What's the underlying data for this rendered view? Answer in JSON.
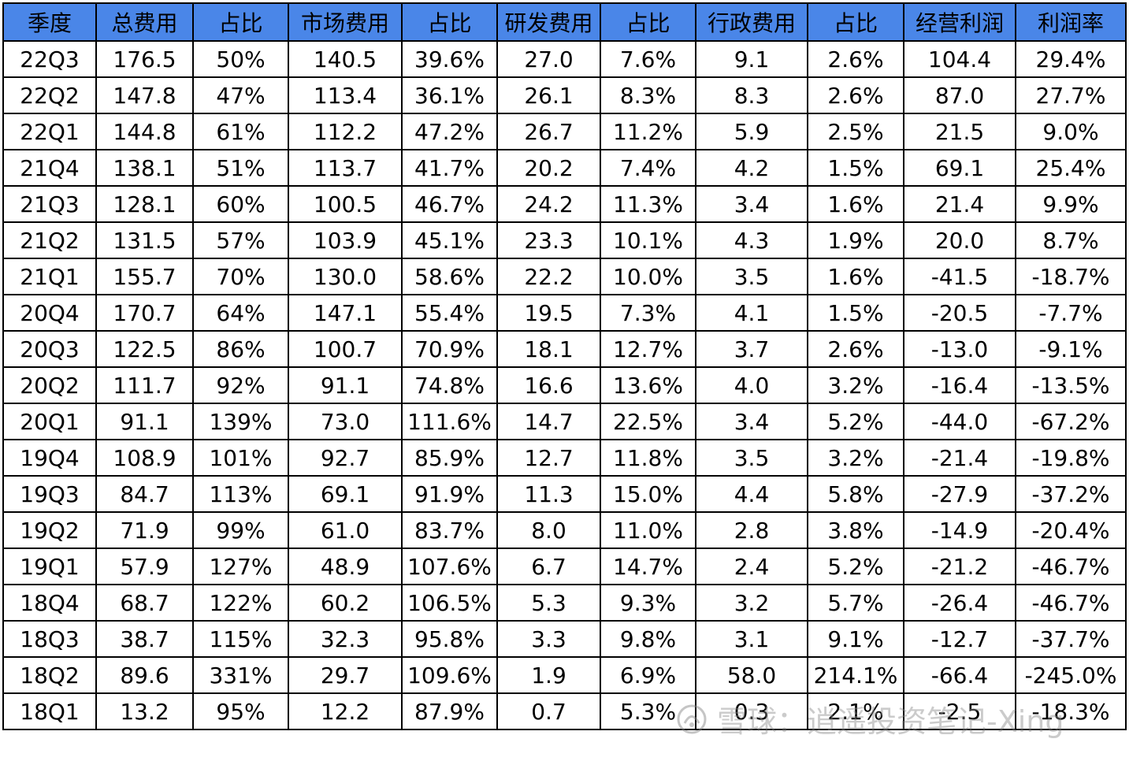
{
  "colors": {
    "header_bg": "#4a86e8",
    "grid": "#000000",
    "text": "#000000"
  },
  "headers": [
    "季度",
    "总费用",
    "占比",
    "市场费用",
    "占比",
    "研发费用",
    "占比",
    "行政费用",
    "占比",
    "经营利润",
    "利润率"
  ],
  "rows": [
    [
      "22Q3",
      "176.5",
      "50%",
      "140.5",
      "39.6%",
      "27.0",
      "7.6%",
      "9.1",
      "2.6%",
      "104.4",
      "29.4%"
    ],
    [
      "22Q2",
      "147.8",
      "47%",
      "113.4",
      "36.1%",
      "26.1",
      "8.3%",
      "8.3",
      "2.6%",
      "87.0",
      "27.7%"
    ],
    [
      "22Q1",
      "144.8",
      "61%",
      "112.2",
      "47.2%",
      "26.7",
      "11.2%",
      "5.9",
      "2.5%",
      "21.5",
      "9.0%"
    ],
    [
      "21Q4",
      "138.1",
      "51%",
      "113.7",
      "41.7%",
      "20.2",
      "7.4%",
      "4.2",
      "1.5%",
      "69.1",
      "25.4%"
    ],
    [
      "21Q3",
      "128.1",
      "60%",
      "100.5",
      "46.7%",
      "24.2",
      "11.3%",
      "3.4",
      "1.6%",
      "21.4",
      "9.9%"
    ],
    [
      "21Q2",
      "131.5",
      "57%",
      "103.9",
      "45.1%",
      "23.3",
      "10.1%",
      "4.3",
      "1.9%",
      "20.0",
      "8.7%"
    ],
    [
      "21Q1",
      "155.7",
      "70%",
      "130.0",
      "58.6%",
      "22.2",
      "10.0%",
      "3.5",
      "1.6%",
      "-41.5",
      "-18.7%"
    ],
    [
      "20Q4",
      "170.7",
      "64%",
      "147.1",
      "55.4%",
      "19.5",
      "7.3%",
      "4.1",
      "1.5%",
      "-20.5",
      "-7.7%"
    ],
    [
      "20Q3",
      "122.5",
      "86%",
      "100.7",
      "70.9%",
      "18.1",
      "12.7%",
      "3.7",
      "2.6%",
      "-13.0",
      "-9.1%"
    ],
    [
      "20Q2",
      "111.7",
      "92%",
      "91.1",
      "74.8%",
      "16.6",
      "13.6%",
      "4.0",
      "3.2%",
      "-16.4",
      "-13.5%"
    ],
    [
      "20Q1",
      "91.1",
      "139%",
      "73.0",
      "111.6%",
      "14.7",
      "22.5%",
      "3.4",
      "5.2%",
      "-44.0",
      "-67.2%"
    ],
    [
      "19Q4",
      "108.9",
      "101%",
      "92.7",
      "85.9%",
      "12.7",
      "11.8%",
      "3.5",
      "3.2%",
      "-21.4",
      "-19.8%"
    ],
    [
      "19Q3",
      "84.7",
      "113%",
      "69.1",
      "91.9%",
      "11.3",
      "15.0%",
      "4.4",
      "5.8%",
      "-27.9",
      "-37.2%"
    ],
    [
      "19Q2",
      "71.9",
      "99%",
      "61.0",
      "83.7%",
      "8.0",
      "11.0%",
      "2.8",
      "3.8%",
      "-14.9",
      "-20.4%"
    ],
    [
      "19Q1",
      "57.9",
      "127%",
      "48.9",
      "107.6%",
      "6.7",
      "14.7%",
      "2.4",
      "5.2%",
      "-21.2",
      "-46.7%"
    ],
    [
      "18Q4",
      "68.7",
      "122%",
      "60.2",
      "106.5%",
      "5.3",
      "9.3%",
      "3.2",
      "5.7%",
      "-26.4",
      "-46.7%"
    ],
    [
      "18Q3",
      "38.7",
      "115%",
      "32.3",
      "95.8%",
      "3.3",
      "9.8%",
      "3.1",
      "9.1%",
      "-12.7",
      "-37.7%"
    ],
    [
      "18Q2",
      "89.6",
      "331%",
      "29.7",
      "109.6%",
      "1.9",
      "6.9%",
      "58.0",
      "214.1%",
      "-66.4",
      "-245.0%"
    ],
    [
      "18Q1",
      "13.2",
      "95%",
      "12.2",
      "87.9%",
      "0.7",
      "5.3%",
      "0.3",
      "2.1%",
      "-2.5",
      "-18.3%"
    ]
  ],
  "watermark": {
    "text": "雪球：逍遥投资笔记-Xing",
    "logo_icon": "snowball-logo-icon"
  }
}
